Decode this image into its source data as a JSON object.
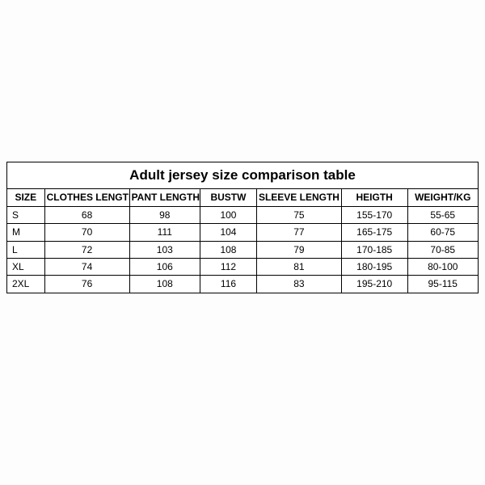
{
  "table": {
    "type": "table",
    "title": "Adult jersey size comparison table",
    "title_fontsize": 17,
    "header_fontsize": 12,
    "cell_fontsize": 12,
    "border_color": "#000000",
    "background_color": "#ffffff",
    "text_color": "#000000",
    "col_widths_pct": [
      8,
      18,
      15,
      12,
      18,
      14,
      15
    ],
    "columns": [
      "SIZE",
      "CLOTHES LENGTH",
      "PANT LENGTH",
      "BUSTW",
      "SLEEVE LENGTH",
      "HEIGTH",
      "WEIGHT/KG"
    ],
    "rows": [
      [
        "S",
        "68",
        "98",
        "100",
        "75",
        "155-170",
        "55-65"
      ],
      [
        "M",
        "70",
        "111",
        "104",
        "77",
        "165-175",
        "60-75"
      ],
      [
        "L",
        "72",
        "103",
        "108",
        "79",
        "170-185",
        "70-85"
      ],
      [
        "XL",
        "74",
        "106",
        "112",
        "81",
        "180-195",
        "80-100"
      ],
      [
        "2XL",
        "76",
        "108",
        "116",
        "83",
        "195-210",
        "95-115"
      ]
    ]
  }
}
